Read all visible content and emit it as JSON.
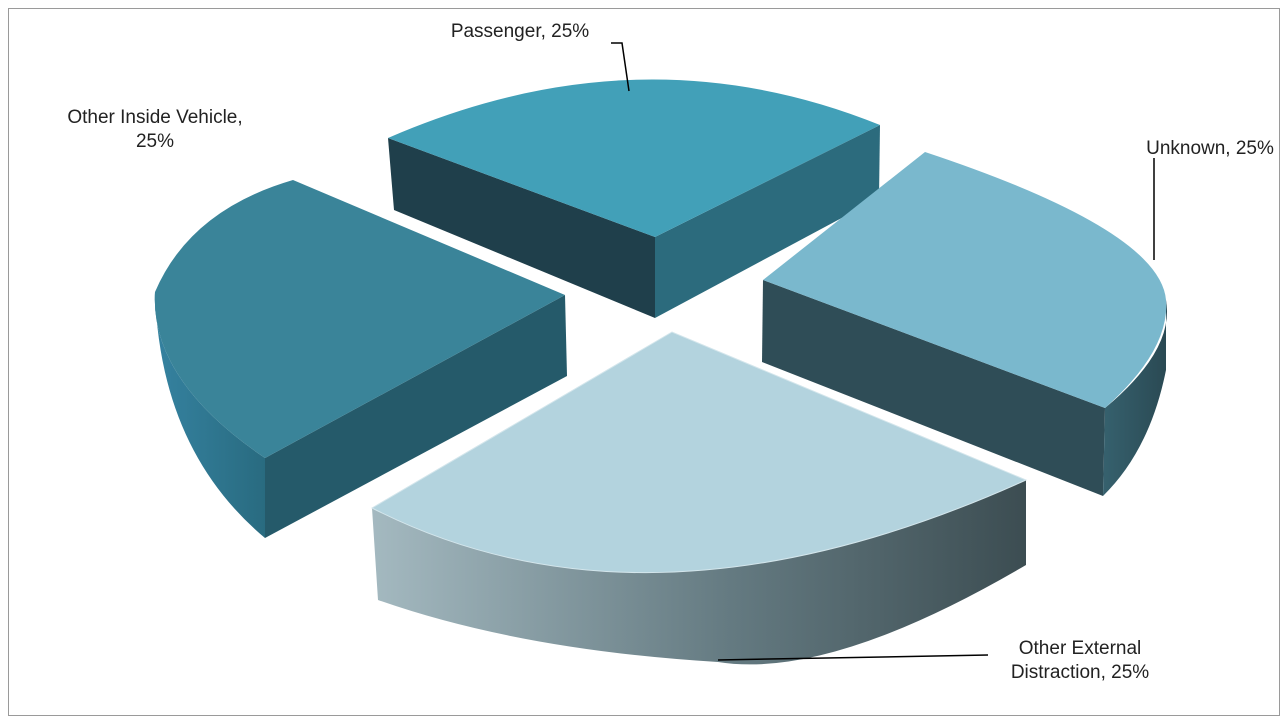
{
  "chart_data": {
    "type": "pie",
    "variant": "3d-exploded",
    "title": "",
    "categories": [
      "Passenger",
      "Unknown",
      "Other External Distraction",
      "Other Inside Vehicle"
    ],
    "values": [
      25,
      25,
      25,
      25
    ],
    "data_labels": [
      {
        "line1": "Passenger, 25%",
        "line2": ""
      },
      {
        "line1": "Unknown,  25%",
        "line2": ""
      },
      {
        "line1": "Other External",
        "line2": "Distraction, 25%"
      },
      {
        "line1": "Other Inside Vehicle,",
        "line2": "25%"
      }
    ],
    "colors": {
      "passenger_top": "#42a0b8",
      "passenger_side_left": "#1f3f4b",
      "passenger_side_right": "#2c6b7d",
      "unknown_top": "#7ab8cd",
      "unknown_side": "#2f4d57",
      "unknown_outer": "#3b6a79",
      "external_top": "#b3d3de",
      "external_outer_left": "#9fb4bb",
      "external_outer_right": "#3f5257",
      "inside_top": "#3a8499",
      "inside_side": "#255a6a",
      "inside_outer": "#2f7489",
      "leader_line": "#000000"
    }
  }
}
